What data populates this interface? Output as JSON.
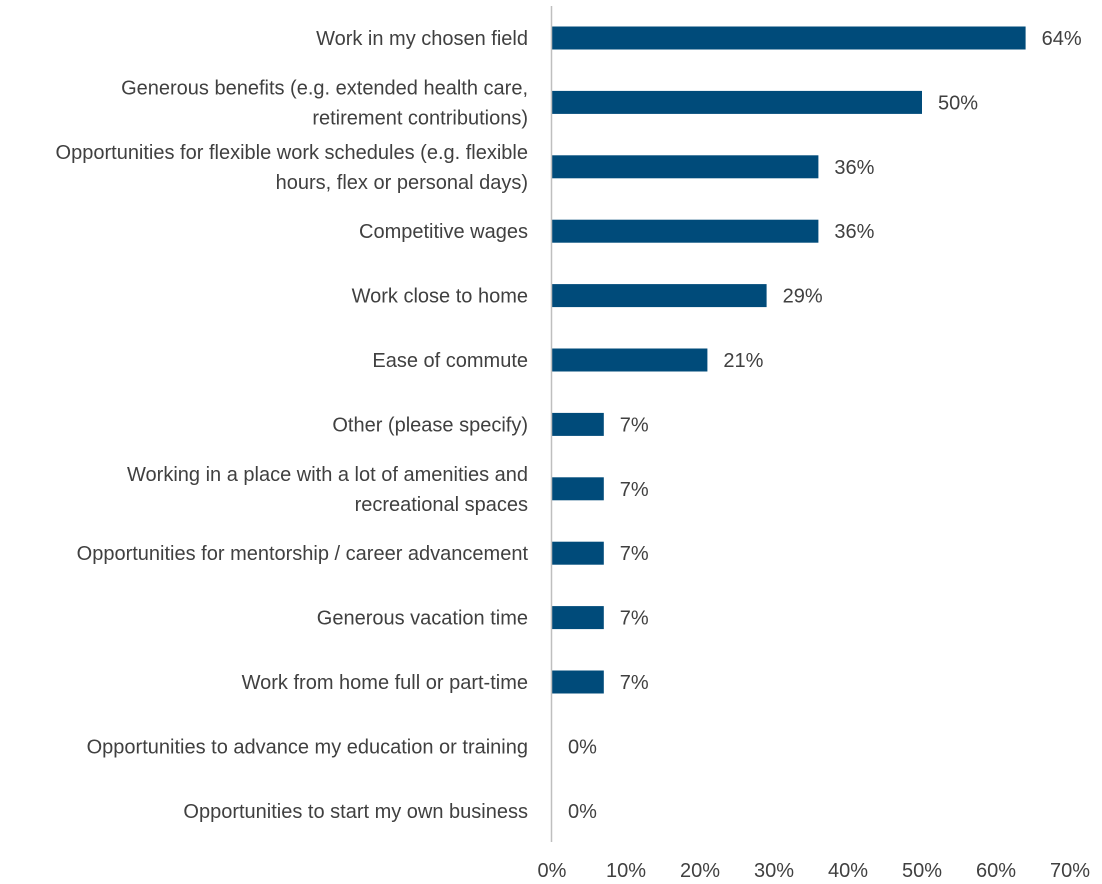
{
  "chart_data": {
    "type": "bar",
    "orientation": "horizontal",
    "title": "",
    "xlabel": "",
    "ylabel": "",
    "categories": [
      "Work in my chosen field",
      "Generous benefits (e.g. extended health care, retirement contributions)",
      "Opportunities for flexible work schedules (e.g. flexible hours, flex or personal days)",
      "Competitive wages",
      "Work close to home",
      "Ease of commute",
      "Other (please specify)",
      "Working in a place with a lot of amenities and recreational spaces",
      "Opportunities for mentorship / career advancement",
      "Generous vacation time",
      "Work from home full or part-time",
      "Opportunities to advance my education or training",
      "Opportunities to start my own business"
    ],
    "category_lines": [
      [
        "Work in my chosen field"
      ],
      [
        "Generous benefits (e.g. extended health care,",
        "retirement contributions)"
      ],
      [
        "Opportunities for flexible work schedules (e.g. flexible",
        "hours, flex or personal days)"
      ],
      [
        "Competitive wages"
      ],
      [
        "Work close to home"
      ],
      [
        "Ease of commute"
      ],
      [
        "Other (please specify)"
      ],
      [
        "Working in a place with a lot of amenities and",
        "recreational spaces"
      ],
      [
        "Opportunities for mentorship / career advancement"
      ],
      [
        "Generous vacation time"
      ],
      [
        "Work from home full or part-time"
      ],
      [
        "Opportunities to advance my education or training"
      ],
      [
        "Opportunities to start my own business"
      ]
    ],
    "values": [
      64,
      50,
      36,
      36,
      29,
      21,
      7,
      7,
      7,
      7,
      7,
      0,
      0
    ],
    "data_labels": [
      "64%",
      "50%",
      "36%",
      "36%",
      "29%",
      "21%",
      "7%",
      "7%",
      "7%",
      "7%",
      "7%",
      "0%",
      "0%"
    ],
    "xlim": [
      0,
      70
    ],
    "x_ticks": [
      0,
      10,
      20,
      30,
      40,
      50,
      60,
      70
    ],
    "x_tick_labels": [
      "0%",
      "10%",
      "20%",
      "30%",
      "40%",
      "50%",
      "60%",
      "70%"
    ],
    "grid": false,
    "legend": "none",
    "colors": {
      "bar": "#004B7A",
      "axis": "#BFBFBF",
      "text": "#404040"
    }
  }
}
